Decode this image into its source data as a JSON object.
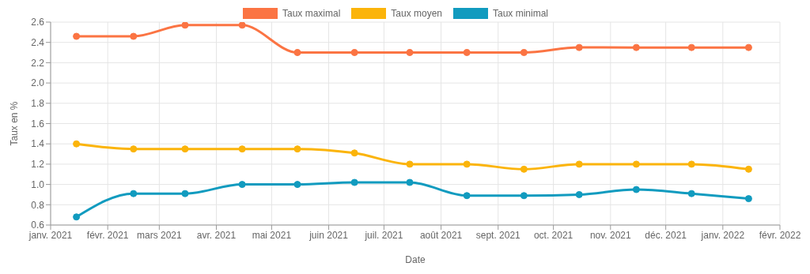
{
  "chart_data": {
    "type": "line",
    "xlabel": "Date",
    "ylabel": "Taux en %",
    "x": [
      "2021-01-15",
      "2021-02-15",
      "2021-03-15",
      "2021-04-15",
      "2021-05-15",
      "2021-06-15",
      "2021-07-15",
      "2021-08-15",
      "2021-09-15",
      "2021-10-15",
      "2021-11-15",
      "2021-12-15",
      "2022-01-15"
    ],
    "series": [
      {
        "name": "Taux maximal",
        "color": "#fb7443",
        "values": [
          2.46,
          2.46,
          2.57,
          2.57,
          2.3,
          2.3,
          2.3,
          2.3,
          2.3,
          2.35,
          2.35,
          2.35,
          2.35
        ]
      },
      {
        "name": "Taux moyen",
        "color": "#fbb40a",
        "values": [
          1.4,
          1.35,
          1.35,
          1.35,
          1.35,
          1.31,
          1.2,
          1.2,
          1.15,
          1.2,
          1.2,
          1.2,
          1.15
        ]
      },
      {
        "name": "Taux minimal",
        "color": "#119bbf",
        "values": [
          0.68,
          0.91,
          0.91,
          1.0,
          1.0,
          1.02,
          1.02,
          0.89,
          0.89,
          0.9,
          0.95,
          0.91,
          0.86
        ]
      }
    ],
    "xlim": [
      "2021-01-01",
      "2022-02-01"
    ],
    "xticks": [
      {
        "value": "2021-01-01",
        "label": "janv. 2021"
      },
      {
        "value": "2021-02-01",
        "label": "févr. 2021"
      },
      {
        "value": "2021-03-01",
        "label": "mars 2021"
      },
      {
        "value": "2021-04-01",
        "label": "avr. 2021"
      },
      {
        "value": "2021-05-01",
        "label": "mai 2021"
      },
      {
        "value": "2021-06-01",
        "label": "juin 2021"
      },
      {
        "value": "2021-07-01",
        "label": "juil. 2021"
      },
      {
        "value": "2021-08-01",
        "label": "août 2021"
      },
      {
        "value": "2021-09-01",
        "label": "sept. 2021"
      },
      {
        "value": "2021-10-01",
        "label": "oct. 2021"
      },
      {
        "value": "2021-11-01",
        "label": "nov. 2021"
      },
      {
        "value": "2021-12-01",
        "label": "déc. 2021"
      },
      {
        "value": "2022-01-01",
        "label": "janv. 2022"
      },
      {
        "value": "2022-02-01",
        "label": "févr. 2022"
      }
    ],
    "ylim": [
      0.6,
      2.6
    ],
    "yticks": [
      0.6,
      0.8,
      {
        "value": 1,
        "label": "1.0"
      },
      1.2,
      1.4,
      1.6,
      1.8,
      {
        "value": 2,
        "label": "2.0"
      },
      2.2,
      2.4,
      2.6
    ],
    "grid": true,
    "legend": "top",
    "marker": "circle",
    "line_style": "solid"
  }
}
